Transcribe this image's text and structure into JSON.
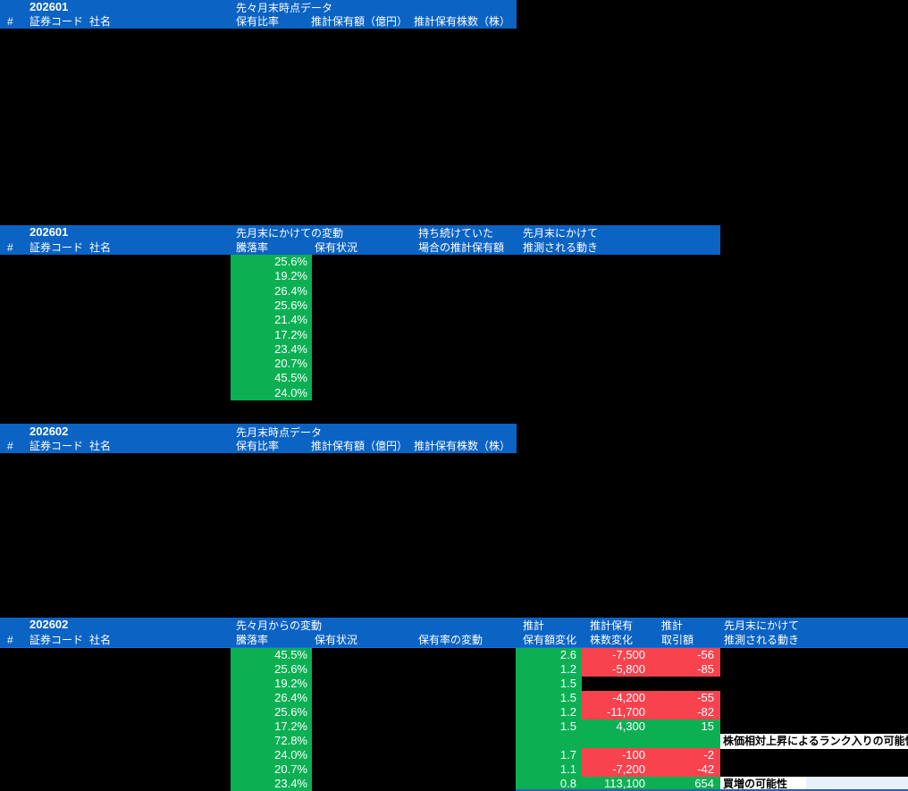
{
  "colors": {
    "background": "#000000",
    "header_blue": "#0b63c4",
    "green": "#0cb053",
    "red": "#f8434e",
    "note_bg": "#ffffff",
    "note_light": "#e9f1fd",
    "text_white": "#ffffff",
    "text_black": "#000000"
  },
  "section1": {
    "period": "202601",
    "group": "先々月末時点データ",
    "col_num": "#",
    "col_code": "証券コード",
    "col_name": "社名",
    "col_ratio": "保有比率",
    "col_amount": "推計保有額（億円）",
    "col_shares": "推計保有株数（株）"
  },
  "section2": {
    "period": "202601",
    "group": "先月末にかけての変動",
    "group_hold_line1": "持ち続けていた",
    "group_hold_line2": "場合の推計保有額",
    "group_move_line1": "先月末にかけて",
    "group_move_line2": "推測される動き",
    "col_num": "#",
    "col_code": "証券コード",
    "col_name": "社名",
    "col_change": "騰落率",
    "col_status": "保有状況",
    "rows": [
      "25.6%",
      "19.2%",
      "26.4%",
      "25.6%",
      "21.4%",
      "17.2%",
      "23.4%",
      "20.7%",
      "45.5%",
      "24.0%"
    ]
  },
  "section3": {
    "period": "202602",
    "group": "先月末時点データ",
    "col_num": "#",
    "col_code": "証券コード",
    "col_name": "社名",
    "col_ratio": "保有比率",
    "col_amount": "推計保有額（億円）",
    "col_shares": "推計保有株数（株）"
  },
  "section4": {
    "period": "202602",
    "group": "先々月からの変動",
    "col_num": "#",
    "col_code": "証券コード",
    "col_name": "社名",
    "col_change": "騰落率",
    "col_status": "保有状況",
    "col_ratio_change": "保有率の変動",
    "col_amt_line1": "推計",
    "col_amt_line2": "保有額変化",
    "col_shr_line1": "推計保有",
    "col_shr_line2": "株数変化",
    "col_trd_line1": "推計",
    "col_trd_line2": "取引額",
    "col_move_line1": "先月末にかけて",
    "col_move_line2": "推測される動き",
    "rows": [
      {
        "change": "45.5%",
        "amount_change": "2.6",
        "shares_change": "-7,500",
        "trade": "-56",
        "cell": "red",
        "note": ""
      },
      {
        "change": "25.6%",
        "amount_change": "1.2",
        "shares_change": "-5,800",
        "trade": "-85",
        "cell": "red",
        "note": ""
      },
      {
        "change": "19.2%",
        "amount_change": "1.5",
        "shares_change": "",
        "trade": "",
        "cell": "none",
        "note": ""
      },
      {
        "change": "26.4%",
        "amount_change": "1.5",
        "shares_change": "-4,200",
        "trade": "-55",
        "cell": "red",
        "note": ""
      },
      {
        "change": "25.6%",
        "amount_change": "1.2",
        "shares_change": "-11,700",
        "trade": "-82",
        "cell": "red",
        "note": ""
      },
      {
        "change": "17.2%",
        "amount_change": "1.5",
        "shares_change": "4,300",
        "trade": "15",
        "cell": "green",
        "note": ""
      },
      {
        "change": "72.8%",
        "amount_change": "",
        "shares_change": "",
        "trade": "",
        "cell": "green",
        "note": "株価相対上昇によるランク入りの可能性",
        "note_wide": true
      },
      {
        "change": "24.0%",
        "amount_change": "1.7",
        "shares_change": "-100",
        "trade": "-2",
        "cell": "red",
        "note": ""
      },
      {
        "change": "20.7%",
        "amount_change": "1.1",
        "shares_change": "-7,200",
        "trade": "-42",
        "cell": "red",
        "note": ""
      },
      {
        "change": "23.4%",
        "amount_change": "0.8",
        "shares_change": "113,100",
        "trade": "654",
        "cell": "green",
        "note": "買増の可能性",
        "note_wide": false
      }
    ]
  }
}
